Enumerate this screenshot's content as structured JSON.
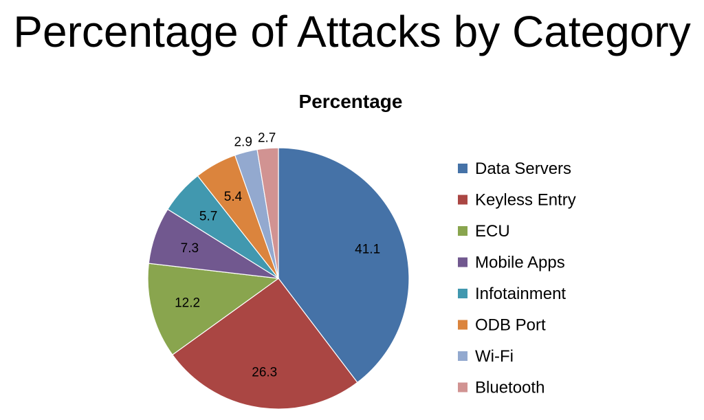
{
  "slide": {
    "title": "Percentage of Attacks by Category"
  },
  "chart_data": {
    "type": "pie",
    "title": "Percentage",
    "categories": [
      "Data Servers",
      "Keyless Entry",
      "ECU",
      "Mobile Apps",
      "Infotainment",
      "ODB Port",
      "Wi-Fi",
      "Bluetooth"
    ],
    "values": [
      41.1,
      26.3,
      12.2,
      7.3,
      5.7,
      5.4,
      2.9,
      2.7
    ],
    "data_labels": [
      "41.1",
      "26.3",
      "12.2",
      "7.3",
      "5.7",
      "5.4",
      "2.9",
      "2.7"
    ],
    "colors": [
      "#4572A7",
      "#AA4643",
      "#89A54E",
      "#71588F",
      "#4198AF",
      "#DB843D",
      "#93A9CF",
      "#D19392"
    ],
    "legend_position": "right",
    "start": "12 o'clock",
    "direction": "clockwise"
  }
}
